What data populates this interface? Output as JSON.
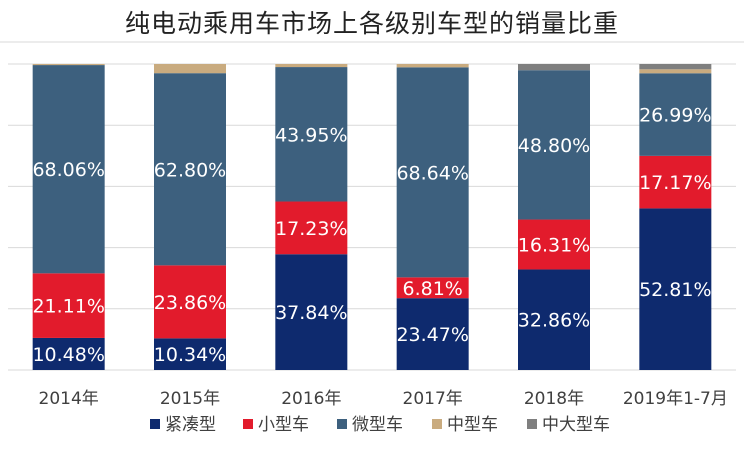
{
  "chart_data": {
    "type": "bar",
    "stacked": true,
    "percent": true,
    "title": "纯电动乘用车市场上各级别车型的销量比重",
    "categories": [
      "2014年",
      "2015年",
      "2016年",
      "2017年",
      "2018年",
      "2019年1-7月"
    ],
    "ylim": [
      0,
      100
    ],
    "grid": true,
    "legend_position": "bottom",
    "series": [
      {
        "name": "紧凑型",
        "color": "#0e2a6e",
        "values": [
          10.48,
          10.34,
          37.84,
          23.47,
          32.86,
          52.81
        ]
      },
      {
        "name": "小型车",
        "color": "#e21b2c",
        "values": [
          21.11,
          23.86,
          17.23,
          6.81,
          16.31,
          17.17
        ]
      },
      {
        "name": "微型车",
        "color": "#3d607e",
        "values": [
          68.06,
          62.8,
          43.95,
          68.64,
          48.8,
          26.99
        ]
      },
      {
        "name": "中型车",
        "color": "#c9ab7f",
        "values": [
          0.35,
          3.0,
          1.0,
          1.08,
          0.0,
          1.3
        ]
      },
      {
        "name": "中大型车",
        "color": "#7f7f7f",
        "values": [
          0.0,
          0.0,
          0.0,
          0.0,
          2.03,
          1.73
        ]
      }
    ],
    "data_labels": [
      [
        "10.48%",
        "10.34%",
        "37.84%",
        "23.47%",
        "32.86%",
        "52.81%"
      ],
      [
        "21.11%",
        "23.86%",
        "17.23%",
        "6.81%",
        "16.31%",
        "17.17%"
      ],
      [
        "68.06%",
        "62.80%",
        "43.95%",
        "68.64%",
        "48.80%",
        "26.99%"
      ],
      null,
      null
    ]
  }
}
